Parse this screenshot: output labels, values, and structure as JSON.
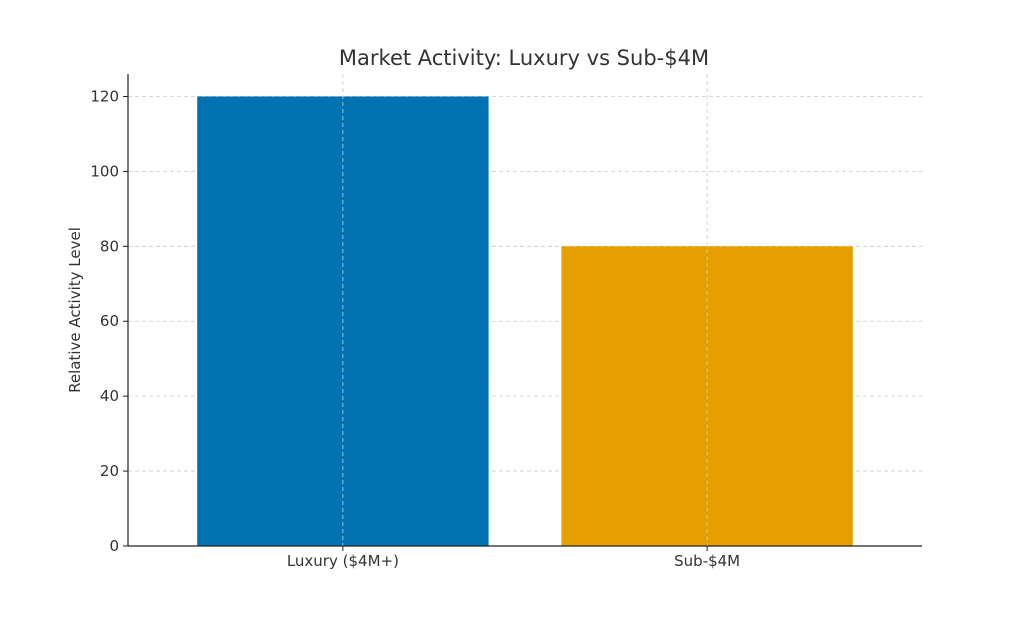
{
  "chart_data": {
    "type": "bar",
    "title": "Market Activity: Luxury vs Sub-$4M",
    "xlabel": "",
    "ylabel": "Relative Activity Level",
    "categories": [
      "Luxury ($4M+)",
      "Sub-$4M"
    ],
    "values": [
      120,
      80
    ],
    "colors": [
      "#0072b2",
      "#e69f00"
    ],
    "ylim": [
      0,
      126
    ],
    "yticks": [
      0,
      20,
      40,
      60,
      80,
      100,
      120
    ],
    "grid": true,
    "legend": "none"
  }
}
